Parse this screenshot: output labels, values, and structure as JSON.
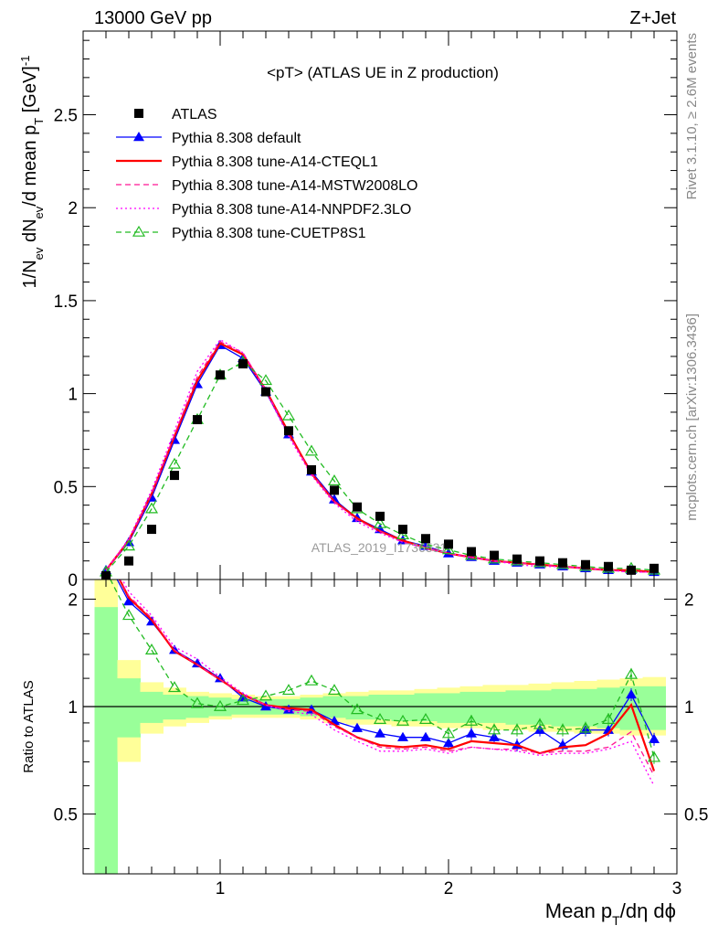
{
  "header": {
    "energy_label": "13000 GeV pp",
    "process_label": "Z+Jet"
  },
  "side_labels": {
    "rivet": "Rivet 3.1.10, ≥ 2.6M events",
    "mcplots": "mcplots.cern.ch [arXiv:1306.3436]"
  },
  "watermark": "ATLAS_2019_I1736531",
  "chart_data": [
    {
      "type": "line",
      "title": "<pT> (ATLAS UE in Z production)",
      "ylabel": "1/N_ev dN_ev/d mean p_T [GeV]^-1",
      "xlabel": "Mean p_T/dη dϕ",
      "xlim": [
        0.4,
        3.0
      ],
      "ylim": [
        0,
        2.95
      ],
      "yticks": [
        0,
        0.5,
        1,
        1.5,
        2,
        2.5
      ],
      "ytick_labels": [
        "0",
        "0.5",
        "1",
        "1.5",
        "2",
        "2.5"
      ],
      "grid": false,
      "legend_position": "top-left",
      "x": [
        0.5,
        0.6,
        0.7,
        0.8,
        0.9,
        1.0,
        1.1,
        1.2,
        1.3,
        1.4,
        1.5,
        1.6,
        1.7,
        1.8,
        1.9,
        2.0,
        2.1,
        2.2,
        2.3,
        2.4,
        2.5,
        2.6,
        2.7,
        2.8,
        2.9
      ],
      "series": [
        {
          "name": "ATLAS",
          "color": "#000000",
          "marker": "square",
          "line": "none",
          "values": [
            0.02,
            0.1,
            0.27,
            0.56,
            0.86,
            1.1,
            1.16,
            1.01,
            0.8,
            0.59,
            0.48,
            0.39,
            0.34,
            0.27,
            0.22,
            0.19,
            0.15,
            0.13,
            0.11,
            0.1,
            0.09,
            0.08,
            0.07,
            0.05,
            0.06
          ]
        },
        {
          "name": "Pythia 8.308 default",
          "color": "#0000ff",
          "marker": "triangle",
          "line": "solid",
          "values": [
            0.05,
            0.2,
            0.44,
            0.75,
            1.05,
            1.26,
            1.19,
            1.01,
            0.78,
            0.58,
            0.43,
            0.33,
            0.27,
            0.21,
            0.18,
            0.14,
            0.12,
            0.1,
            0.09,
            0.08,
            0.07,
            0.06,
            0.05,
            0.05,
            0.04
          ]
        },
        {
          "name": "Pythia 8.308 tune-A14-CTEQL1",
          "color": "#ff0000",
          "marker": "none",
          "line": "solid",
          "values": [
            0.05,
            0.21,
            0.46,
            0.77,
            1.07,
            1.27,
            1.21,
            1.02,
            0.79,
            0.57,
            0.42,
            0.33,
            0.26,
            0.21,
            0.17,
            0.14,
            0.12,
            0.1,
            0.09,
            0.08,
            0.07,
            0.06,
            0.05,
            0.05,
            0.04
          ]
        },
        {
          "name": "Pythia 8.308 tune-A14-MSTW2008LO",
          "color": "#ff1493",
          "marker": "none",
          "line": "dashed",
          "values": [
            0.05,
            0.21,
            0.46,
            0.78,
            1.09,
            1.28,
            1.22,
            1.02,
            0.78,
            0.57,
            0.42,
            0.32,
            0.26,
            0.2,
            0.17,
            0.14,
            0.12,
            0.1,
            0.09,
            0.08,
            0.07,
            0.06,
            0.05,
            0.04,
            0.04
          ]
        },
        {
          "name": "Pythia 8.308 tune-A14-NNPDF2.3LO",
          "color": "#ff00ff",
          "marker": "none",
          "line": "dotted",
          "values": [
            0.05,
            0.22,
            0.48,
            0.8,
            1.12,
            1.29,
            1.22,
            1.01,
            0.77,
            0.56,
            0.41,
            0.31,
            0.25,
            0.2,
            0.17,
            0.14,
            0.12,
            0.1,
            0.08,
            0.07,
            0.07,
            0.06,
            0.05,
            0.04,
            0.04
          ]
        },
        {
          "name": "Pythia 8.308 tune-CUETP8S1",
          "color": "#22bb22",
          "marker": "open-triangle",
          "line": "dashed",
          "values": [
            0.04,
            0.18,
            0.38,
            0.62,
            0.86,
            1.1,
            1.17,
            1.07,
            0.88,
            0.69,
            0.53,
            0.38,
            0.3,
            0.24,
            0.19,
            0.16,
            0.13,
            0.11,
            0.1,
            0.09,
            0.08,
            0.07,
            0.06,
            0.06,
            0.05
          ]
        }
      ]
    },
    {
      "type": "line",
      "ylabel": "Ratio to ATLAS",
      "xlabel": "Mean p_T/dη dϕ",
      "xlim": [
        0.4,
        3.0
      ],
      "ylim": [
        0.34,
        2.27
      ],
      "yticks": [
        0.5,
        1,
        2
      ],
      "ytick_labels": [
        "0.5",
        "1",
        "2"
      ],
      "xticks": [
        1,
        2,
        3
      ],
      "xtick_labels": [
        "1",
        "2",
        "3"
      ],
      "reference_line": 1,
      "uncertainty_bands": {
        "bin_edges": [
          0.45,
          0.55,
          0.65,
          0.75,
          0.85,
          0.95,
          1.05,
          1.15,
          1.25,
          1.35,
          1.45,
          1.55,
          1.65,
          1.75,
          1.85,
          1.95,
          2.05,
          2.15,
          2.25,
          2.35,
          2.45,
          2.55,
          2.65,
          2.75,
          2.85,
          2.95
        ],
        "inner_color": "#99ff99",
        "outer_color": "#ffff99",
        "inner_low": [
          0.3,
          0.82,
          0.9,
          0.92,
          0.93,
          0.94,
          0.95,
          0.95,
          0.95,
          0.94,
          0.93,
          0.92,
          0.92,
          0.91,
          0.91,
          0.9,
          0.9,
          0.9,
          0.89,
          0.89,
          0.88,
          0.88,
          0.87,
          0.86,
          0.86
        ],
        "inner_high": [
          1.9,
          1.2,
          1.1,
          1.08,
          1.07,
          1.06,
          1.05,
          1.05,
          1.05,
          1.06,
          1.07,
          1.07,
          1.08,
          1.08,
          1.09,
          1.09,
          1.1,
          1.1,
          1.11,
          1.11,
          1.12,
          1.12,
          1.13,
          1.14,
          1.14
        ],
        "outer_low": [
          0.3,
          0.7,
          0.84,
          0.88,
          0.9,
          0.92,
          0.93,
          0.93,
          0.93,
          0.92,
          0.9,
          0.89,
          0.89,
          0.88,
          0.88,
          0.87,
          0.87,
          0.86,
          0.86,
          0.85,
          0.85,
          0.84,
          0.84,
          0.83,
          0.83
        ],
        "outer_high": [
          2.3,
          1.35,
          1.17,
          1.13,
          1.1,
          1.09,
          1.08,
          1.07,
          1.07,
          1.08,
          1.09,
          1.1,
          1.11,
          1.11,
          1.12,
          1.13,
          1.14,
          1.15,
          1.15,
          1.16,
          1.17,
          1.18,
          1.19,
          1.2,
          1.21
        ]
      },
      "x": [
        0.5,
        0.6,
        0.7,
        0.8,
        0.9,
        1.0,
        1.1,
        1.2,
        1.3,
        1.4,
        1.5,
        1.6,
        1.7,
        1.8,
        1.9,
        2.0,
        2.1,
        2.2,
        2.3,
        2.4,
        2.5,
        2.6,
        2.7,
        2.8,
        2.9
      ],
      "series": [
        {
          "name": "Pythia 8.308 default",
          "color": "#0000ff",
          "marker": "triangle",
          "line": "solid",
          "values": [
            2.6,
            1.97,
            1.73,
            1.44,
            1.32,
            1.2,
            1.06,
            1.0,
            0.98,
            0.98,
            0.91,
            0.87,
            0.84,
            0.82,
            0.82,
            0.79,
            0.84,
            0.82,
            0.78,
            0.86,
            0.78,
            0.86,
            0.86,
            1.08,
            0.81
          ]
        },
        {
          "name": "Pythia 8.308 tune-A14-CTEQL1",
          "color": "#ff0000",
          "marker": "none",
          "line": "solid",
          "values": [
            2.7,
            2.02,
            1.75,
            1.43,
            1.31,
            1.19,
            1.08,
            1.01,
            0.99,
            0.98,
            0.89,
            0.82,
            0.78,
            0.77,
            0.78,
            0.76,
            0.8,
            0.79,
            0.78,
            0.74,
            0.77,
            0.78,
            0.84,
            1.01,
            0.66
          ]
        },
        {
          "name": "Pythia 8.308 tune-A14-MSTW2008LO",
          "color": "#ff1493",
          "marker": "none",
          "line": "dashed",
          "values": [
            2.7,
            2.04,
            1.77,
            1.44,
            1.31,
            1.19,
            1.08,
            1.01,
            0.98,
            0.97,
            0.88,
            0.82,
            0.77,
            0.76,
            0.77,
            0.75,
            0.77,
            0.76,
            0.76,
            0.74,
            0.75,
            0.75,
            0.77,
            0.85,
            0.64
          ]
        },
        {
          "name": "Pythia 8.308 tune-A14-NNPDF2.3LO",
          "color": "#ff00ff",
          "marker": "none",
          "line": "dotted",
          "values": [
            2.75,
            2.1,
            1.8,
            1.47,
            1.36,
            1.21,
            1.09,
            1.01,
            0.97,
            0.95,
            0.86,
            0.8,
            0.75,
            0.75,
            0.76,
            0.74,
            0.77,
            0.76,
            0.75,
            0.73,
            0.74,
            0.74,
            0.76,
            0.8,
            0.6
          ]
        },
        {
          "name": "Pythia 8.308 tune-CUETP8S1",
          "color": "#22bb22",
          "marker": "open-triangle",
          "line": "dashed",
          "values": [
            2.4,
            1.8,
            1.44,
            1.13,
            1.02,
            1.0,
            1.04,
            1.07,
            1.11,
            1.18,
            1.11,
            0.98,
            0.92,
            0.91,
            0.92,
            0.84,
            0.91,
            0.86,
            0.86,
            0.89,
            0.86,
            0.87,
            0.92,
            1.23,
            0.72
          ]
        }
      ]
    }
  ]
}
